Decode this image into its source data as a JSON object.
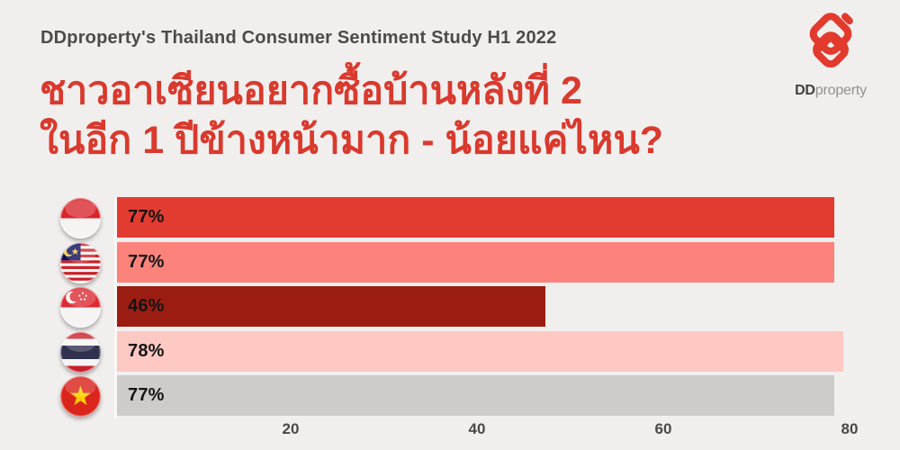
{
  "theme": {
    "background": "#f1efee",
    "brand_red": "#e23a2d",
    "title_red": "#da392d",
    "header_text": "#4d4b49",
    "value_label_color": "#141414",
    "axis_text_color": "#4b4947"
  },
  "header": {
    "study_label": "DDproperty's Thailand Consumer Sentiment Study H1 2022",
    "logo": {
      "brand_bold": "DD",
      "brand_light": "property"
    }
  },
  "title": {
    "line1": "ชาวอาเซียนอยากซื้อบ้านหลังที่ 2",
    "line2": "ในอีก 1 ปีข้างหน้ามาก - น้อยแค่ไหน?"
  },
  "chart_data": {
    "type": "bar",
    "orientation": "horizontal",
    "title": "ชาวอาเซียนอยากซื้อบ้านหลังที่ 2 ในอีก 1 ปีข้างหน้ามาก - น้อยแค่ไหน?",
    "categories": [
      "Indonesia",
      "Malaysia",
      "Singapore",
      "Thailand",
      "Vietnam"
    ],
    "values": [
      77,
      77,
      46,
      78,
      77
    ],
    "value_labels": [
      "77%",
      "77%",
      "46%",
      "78%",
      "77%"
    ],
    "bar_colors": [
      "#e23c31",
      "#fc837b",
      "#9b1d12",
      "#fec8c3",
      "#cdcccb"
    ],
    "flag_icons": [
      "indonesia-flag-icon",
      "malaysia-flag-icon",
      "singapore-flag-icon",
      "thailand-flag-icon",
      "vietnam-flag-icon"
    ],
    "xlim": [
      0,
      80
    ],
    "x_ticks": [
      20,
      40,
      60,
      80
    ],
    "grid": false,
    "legend": "none",
    "value_label_position": "inside-left"
  }
}
